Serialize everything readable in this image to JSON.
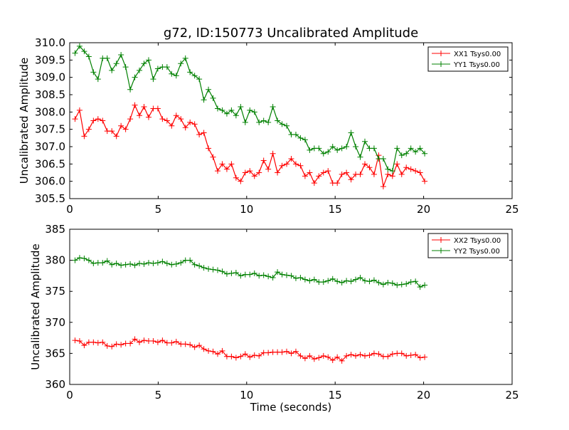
{
  "chart_data": [
    {
      "type": "line",
      "title": "g72, ID:150773 Uncalibrated Amplitude",
      "xlabel": "",
      "ylabel": "Uncalibrated Amplitude",
      "xlim": [
        0,
        25
      ],
      "ylim": [
        305.5,
        310.0
      ],
      "xticks": [
        "0",
        "5",
        "10",
        "15",
        "20",
        "25"
      ],
      "yticks": [
        "305.5",
        "306.0",
        "306.5",
        "307.0",
        "307.5",
        "308.0",
        "308.5",
        "309.0",
        "309.5",
        "310.0"
      ],
      "legend_position": "top-right",
      "x_start": 0.3,
      "x_step": 0.26,
      "series": [
        {
          "name": "XX1 Tsys0.00",
          "color": "#ff0000",
          "values": [
            307.8,
            308.05,
            307.3,
            307.5,
            307.75,
            307.8,
            307.75,
            307.45,
            307.45,
            307.3,
            307.6,
            307.5,
            307.8,
            308.2,
            307.9,
            308.15,
            307.85,
            308.1,
            308.1,
            307.8,
            307.75,
            307.6,
            307.9,
            307.8,
            307.55,
            307.7,
            307.65,
            307.35,
            307.4,
            306.95,
            306.7,
            306.3,
            306.5,
            306.35,
            306.5,
            306.1,
            306.0,
            306.25,
            306.3,
            306.15,
            306.25,
            306.6,
            306.35,
            306.8,
            306.25,
            306.45,
            306.5,
            306.65,
            306.5,
            306.45,
            306.15,
            306.25,
            305.95,
            306.15,
            306.25,
            306.3,
            305.95,
            305.95,
            306.2,
            306.25,
            306.05,
            306.2,
            306.2,
            306.5,
            306.4,
            306.2,
            306.75,
            305.85,
            306.2,
            306.15,
            306.5,
            306.2,
            306.4,
            306.35,
            306.3,
            306.25,
            306.0
          ]
        },
        {
          "name": "YY1 Tsys0.00",
          "color": "#008000",
          "values": [
            309.7,
            309.9,
            309.75,
            309.6,
            309.15,
            308.95,
            309.55,
            309.55,
            309.2,
            309.4,
            309.65,
            309.3,
            308.65,
            309.0,
            309.2,
            309.4,
            309.5,
            308.95,
            309.25,
            309.3,
            309.3,
            309.1,
            309.05,
            309.4,
            309.55,
            309.15,
            309.05,
            308.95,
            308.35,
            308.65,
            308.4,
            308.1,
            308.05,
            307.95,
            308.05,
            307.9,
            308.15,
            307.7,
            308.05,
            308.0,
            307.7,
            307.75,
            307.7,
            308.15,
            307.75,
            307.65,
            307.6,
            307.35,
            307.35,
            307.25,
            307.2,
            306.9,
            306.95,
            306.95,
            306.8,
            306.85,
            307.0,
            306.9,
            306.95,
            307.0,
            307.4,
            307.0,
            306.7,
            307.15,
            306.95,
            306.95,
            306.65,
            306.65,
            306.35,
            306.3,
            306.95,
            306.75,
            306.8,
            306.95,
            306.85,
            306.95,
            306.8
          ]
        }
      ]
    },
    {
      "type": "line",
      "title": "",
      "xlabel": "Time (seconds)",
      "ylabel": "Uncalibrated Amplitude",
      "xlim": [
        0,
        25
      ],
      "ylim": [
        360,
        385
      ],
      "xticks": [
        "0",
        "5",
        "10",
        "15",
        "20",
        "25"
      ],
      "yticks": [
        "360",
        "365",
        "370",
        "375",
        "380",
        "385"
      ],
      "legend_position": "top-right",
      "x_start": 0.3,
      "x_step": 0.26,
      "series": [
        {
          "name": "XX2 Tsys0.00",
          "color": "#ff0000",
          "values": [
            367.1,
            367.0,
            366.3,
            366.8,
            366.8,
            366.7,
            366.8,
            366.2,
            366.1,
            366.5,
            366.4,
            366.6,
            366.6,
            367.3,
            366.8,
            367.1,
            367.0,
            367.0,
            366.8,
            367.1,
            366.7,
            366.7,
            366.9,
            366.5,
            366.5,
            366.4,
            366.0,
            366.3,
            365.7,
            365.4,
            365.3,
            364.9,
            365.4,
            364.5,
            364.5,
            364.3,
            364.5,
            364.9,
            364.4,
            364.7,
            364.6,
            365.1,
            365.1,
            365.2,
            365.2,
            365.2,
            365.3,
            365.0,
            365.3,
            364.6,
            364.2,
            364.6,
            364.1,
            364.3,
            364.6,
            364.4,
            363.9,
            364.4,
            363.8,
            364.6,
            364.8,
            364.6,
            364.8,
            364.6,
            364.7,
            365.0,
            364.9,
            364.5,
            364.5,
            364.9,
            365.0,
            365.0,
            364.6,
            364.7,
            364.8,
            364.3,
            364.4
          ]
        },
        {
          "name": "YY2 Tsys0.00",
          "color": "#008000",
          "values": [
            380.0,
            380.4,
            380.3,
            380.0,
            379.5,
            379.6,
            379.6,
            379.9,
            379.3,
            379.5,
            379.2,
            379.3,
            379.4,
            379.2,
            379.5,
            379.4,
            379.6,
            379.5,
            379.6,
            379.8,
            379.5,
            379.3,
            379.4,
            379.6,
            380.0,
            380.0,
            379.3,
            379.1,
            378.8,
            378.6,
            378.5,
            378.4,
            378.2,
            377.8,
            377.9,
            378.0,
            377.5,
            377.7,
            377.7,
            377.9,
            377.5,
            377.6,
            377.4,
            377.2,
            378.1,
            377.7,
            377.6,
            377.5,
            377.1,
            377.2,
            376.9,
            376.7,
            376.9,
            376.5,
            376.5,
            376.7,
            377.0,
            376.6,
            376.4,
            376.7,
            376.6,
            376.9,
            377.2,
            376.7,
            376.6,
            376.8,
            376.4,
            376.1,
            376.4,
            376.3,
            376.0,
            376.1,
            376.2,
            376.5,
            376.6,
            375.7,
            376.0
          ]
        }
      ]
    }
  ]
}
